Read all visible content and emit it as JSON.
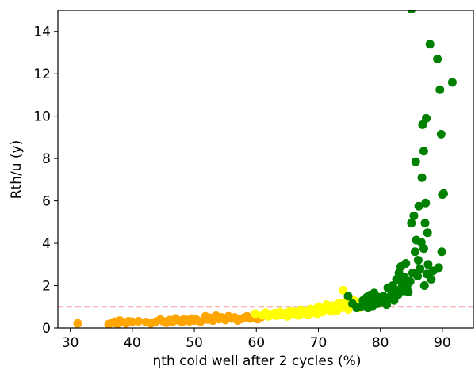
{
  "chart_data": {
    "type": "scatter",
    "title": "",
    "xlabel": "ηth cold well after 2 cycles (%)",
    "ylabel": "Rth/u (y)",
    "xlim": [
      28,
      95
    ],
    "ylim": [
      0,
      15
    ],
    "xticks": [
      30,
      40,
      50,
      60,
      70,
      80,
      90
    ],
    "yticks": [
      0,
      2,
      4,
      6,
      8,
      10,
      12,
      14
    ],
    "grid": false,
    "legend": "none",
    "reference_line": {
      "y": 1.0,
      "style": "dashed",
      "color": "#f4a0a0"
    },
    "series": [
      {
        "color": "#ffa500",
        "points": [
          [
            31.2,
            0.22
          ],
          [
            36.2,
            0.18
          ],
          [
            36.8,
            0.25
          ],
          [
            37.2,
            0.3
          ],
          [
            37.6,
            0.2
          ],
          [
            38.0,
            0.35
          ],
          [
            38.5,
            0.28
          ],
          [
            39.0,
            0.22
          ],
          [
            39.4,
            0.32
          ],
          [
            40.0,
            0.3
          ],
          [
            41.0,
            0.32
          ],
          [
            42.2,
            0.28
          ],
          [
            43.0,
            0.22
          ],
          [
            43.8,
            0.3
          ],
          [
            44.5,
            0.4
          ],
          [
            45.0,
            0.32
          ],
          [
            45.5,
            0.25
          ],
          [
            46.0,
            0.38
          ],
          [
            46.5,
            0.3
          ],
          [
            47.0,
            0.45
          ],
          [
            47.5,
            0.35
          ],
          [
            48.0,
            0.28
          ],
          [
            48.3,
            0.4
          ],
          [
            48.8,
            0.38
          ],
          [
            49.2,
            0.32
          ],
          [
            49.6,
            0.45
          ],
          [
            50.0,
            0.35
          ],
          [
            50.3,
            0.4
          ],
          [
            51.0,
            0.3
          ],
          [
            51.8,
            0.55
          ],
          [
            52.2,
            0.4
          ],
          [
            52.6,
            0.48
          ],
          [
            53.0,
            0.35
          ],
          [
            53.5,
            0.58
          ],
          [
            54.0,
            0.42
          ],
          [
            54.4,
            0.5
          ],
          [
            55.0,
            0.38
          ],
          [
            55.5,
            0.55
          ],
          [
            56.0,
            0.45
          ],
          [
            56.5,
            0.5
          ],
          [
            57.0,
            0.35
          ],
          [
            57.4,
            0.42
          ],
          [
            58.0,
            0.48
          ],
          [
            58.5,
            0.55
          ],
          [
            59.0,
            0.45
          ],
          [
            59.5,
            0.5
          ],
          [
            60.0,
            0.55
          ],
          [
            60.2,
            0.42
          ],
          [
            60.8,
            0.52
          ]
        ]
      },
      {
        "color": "#ffff00",
        "points": [
          [
            59.8,
            0.68
          ],
          [
            61.0,
            0.6
          ],
          [
            61.5,
            0.72
          ],
          [
            62.0,
            0.55
          ],
          [
            62.5,
            0.65
          ],
          [
            63.0,
            0.7
          ],
          [
            63.3,
            0.58
          ],
          [
            63.8,
            0.75
          ],
          [
            64.2,
            0.62
          ],
          [
            64.8,
            0.7
          ],
          [
            65.0,
            0.55
          ],
          [
            65.5,
            0.8
          ],
          [
            66.0,
            0.68
          ],
          [
            66.3,
            0.75
          ],
          [
            66.8,
            0.6
          ],
          [
            67.2,
            0.85
          ],
          [
            67.5,
            0.7
          ],
          [
            68.0,
            0.78
          ],
          [
            68.3,
            0.62
          ],
          [
            68.8,
            0.9
          ],
          [
            69.0,
            0.72
          ],
          [
            69.4,
            0.82
          ],
          [
            69.8,
            0.68
          ],
          [
            70.0,
            1.0
          ],
          [
            70.3,
            0.85
          ],
          [
            70.6,
            0.75
          ],
          [
            71.0,
            0.95
          ],
          [
            71.3,
            1.1
          ],
          [
            71.6,
            0.88
          ],
          [
            72.0,
            0.78
          ],
          [
            72.3,
            1.05
          ],
          [
            72.6,
            0.9
          ],
          [
            73.0,
            0.82
          ],
          [
            73.3,
            1.15
          ],
          [
            73.6,
            0.95
          ],
          [
            74.0,
            1.78
          ],
          [
            74.2,
            1.2
          ],
          [
            74.5,
            1.0
          ],
          [
            74.8,
            0.88
          ],
          [
            75.1,
            1.25
          ],
          [
            75.4,
            1.1
          ],
          [
            75.7,
            1.3
          ],
          [
            76.0,
            1.05
          ],
          [
            76.3,
            1.2
          ],
          [
            76.6,
            0.95
          ],
          [
            77.0,
            1.15
          ]
        ]
      },
      {
        "color": "#008000",
        "points": [
          [
            74.8,
            1.5
          ],
          [
            75.5,
            1.15
          ],
          [
            76.2,
            0.95
          ],
          [
            76.8,
            1.0
          ],
          [
            77.2,
            1.3
          ],
          [
            77.5,
            1.1
          ],
          [
            77.8,
            1.45
          ],
          [
            78.0,
            0.95
          ],
          [
            78.3,
            1.55
          ],
          [
            78.5,
            1.2
          ],
          [
            78.8,
            1.05
          ],
          [
            79.0,
            1.65
          ],
          [
            79.3,
            1.35
          ],
          [
            79.6,
            1.15
          ],
          [
            79.9,
            1.45
          ],
          [
            80.2,
            1.25
          ],
          [
            80.5,
            1.5
          ],
          [
            80.8,
            1.3
          ],
          [
            81.0,
            1.1
          ],
          [
            81.2,
            1.9
          ],
          [
            81.5,
            1.4
          ],
          [
            81.8,
            1.6
          ],
          [
            82.0,
            2.0
          ],
          [
            82.2,
            1.3
          ],
          [
            82.4,
            1.7
          ],
          [
            82.6,
            2.3
          ],
          [
            82.8,
            1.55
          ],
          [
            83.0,
            2.6
          ],
          [
            83.1,
            1.8
          ],
          [
            83.3,
            2.9
          ],
          [
            83.5,
            2.1
          ],
          [
            83.7,
            1.75
          ],
          [
            83.9,
            2.4
          ],
          [
            84.1,
            3.05
          ],
          [
            84.3,
            2.0
          ],
          [
            84.5,
            1.7
          ],
          [
            84.8,
            2.2
          ],
          [
            85.0,
            4.95
          ],
          [
            85.2,
            2.6
          ],
          [
            85.4,
            5.3
          ],
          [
            85.6,
            3.6
          ],
          [
            85.7,
            7.85
          ],
          [
            85.8,
            4.15
          ],
          [
            86.0,
            2.45
          ],
          [
            86.1,
            3.2
          ],
          [
            86.2,
            5.75
          ],
          [
            86.4,
            2.8
          ],
          [
            86.6,
            4.05
          ],
          [
            86.7,
            7.1
          ],
          [
            86.8,
            9.6
          ],
          [
            87.0,
            8.35
          ],
          [
            87.0,
            3.75
          ],
          [
            87.1,
            2.0
          ],
          [
            87.2,
            4.95
          ],
          [
            87.3,
            5.9
          ],
          [
            87.4,
            9.9
          ],
          [
            87.5,
            2.55
          ],
          [
            87.6,
            4.5
          ],
          [
            87.7,
            3.0
          ],
          [
            88.0,
            13.4
          ],
          [
            88.2,
            2.3
          ],
          [
            88.5,
            2.7
          ],
          [
            89.2,
            12.7
          ],
          [
            89.4,
            2.85
          ],
          [
            89.6,
            11.25
          ],
          [
            89.8,
            9.15
          ],
          [
            89.9,
            3.6
          ],
          [
            90.0,
            6.3
          ],
          [
            90.2,
            6.35
          ],
          [
            91.6,
            11.6
          ],
          [
            85.0,
            15.05
          ]
        ]
      }
    ]
  }
}
